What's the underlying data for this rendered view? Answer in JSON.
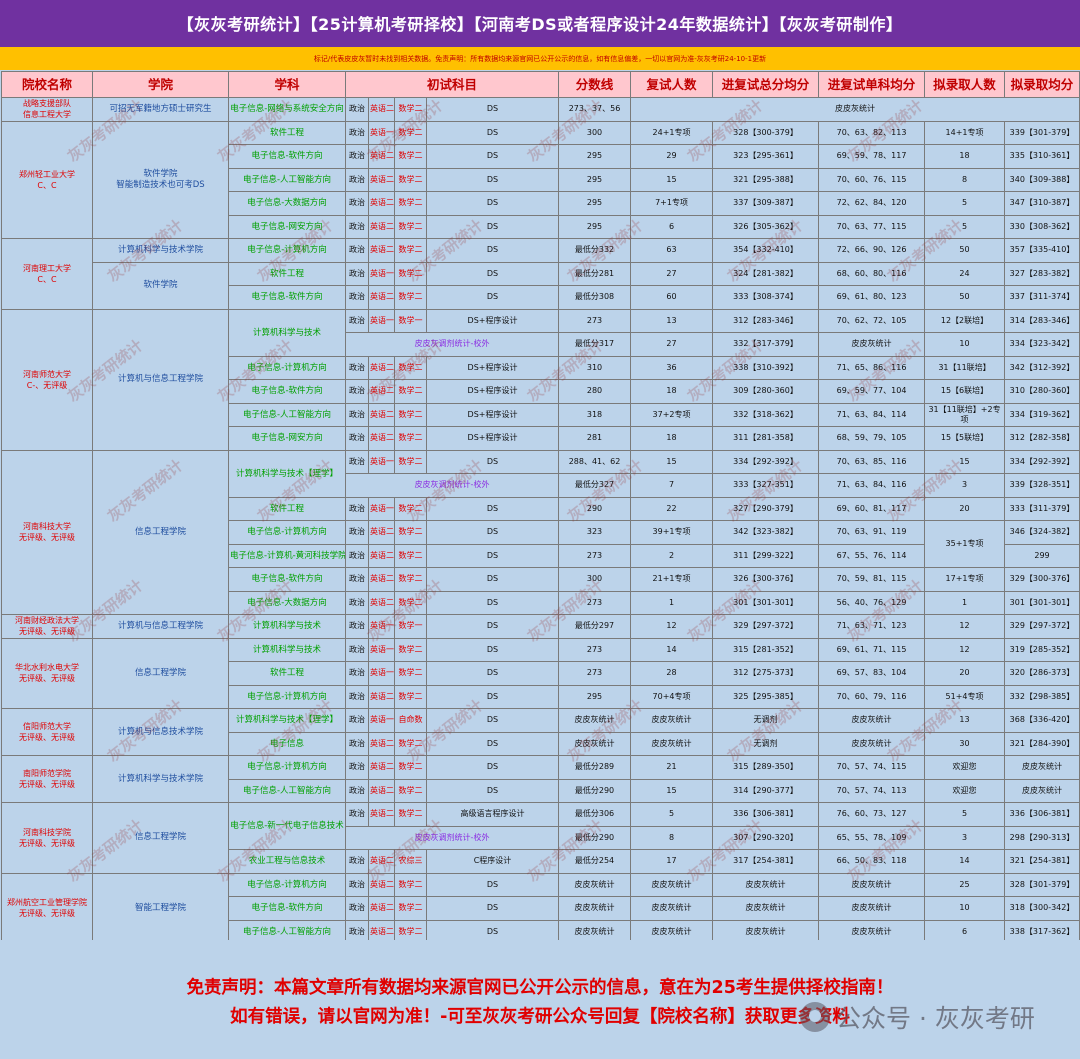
{
  "title": "【灰灰考研统计】【25计算机考研择校】【河南考DS或者程序设计24年数据统计】【灰灰考研制作】",
  "notice": "标记/代表皮皮灰暂时未找到相关数据。免责声明：所有数据均来源官网已公开公示的信息，如有信息偏差，一切以官网为准-灰灰考研24-10-1更新",
  "headers": [
    "院校名称",
    "学院",
    "学科",
    "初试科目",
    "分数线",
    "复试人数",
    "进复试总分均分",
    "进复试单科均分",
    "拟录取人数",
    "拟录取均分"
  ],
  "watermark_text": "灰灰考研统计",
  "schools": [
    {
      "name": "战略支援部队\n信息工程大学"
    },
    {
      "name": "郑州轻工业大学\nC、C"
    },
    {
      "name": "河南理工大学\nC、C"
    },
    {
      "name": "河南师范大学\nC-、无评级"
    },
    {
      "name": "河南科技大学\n无评级、无评级"
    },
    {
      "name": "河南财经政法大学\n无评级、无评级"
    },
    {
      "name": "华北水利水电大学\n无评级、无评级"
    },
    {
      "name": "信阳师范大学\n无评级、无评级"
    },
    {
      "name": "南阳师范学院\n无评级、无评级"
    },
    {
      "name": "河南科技学院\n无评级、无评级"
    },
    {
      "name": "郑州航空工业管理学院\n无评级、无评级"
    }
  ],
  "colleges": [
    "可招无军籍地方硕士研究生",
    "软件学院\n智能制造技术也可考DS",
    "计算机科学与技术学院",
    "软件学院",
    "计算机与信息工程学院",
    "信息工程学院",
    "计算机与信息工程学院",
    "信息工程学院",
    "计算机与信息技术学院",
    "计算机科学与技术学院",
    "信息工程学院",
    "智能工程学院"
  ],
  "rows": [
    {
      "major": "电子信息-网络与系统安全方向",
      "pol": "政治",
      "eng": "英语二",
      "math": "数学二",
      "pro": "DS",
      "line": "273、37、56",
      "retest": "皮皮灰统计"
    },
    {
      "major": "软件工程",
      "pol": "政治",
      "eng": "英语一",
      "math": "数学二",
      "pro": "DS",
      "line": "300",
      "retest": "24+1专项",
      "avg": "328【300-379】",
      "sub": "70、63、82、113",
      "admit": "14+1专项",
      "admit_avg": "339【301-379】"
    },
    {
      "major": "电子信息-软件方向",
      "pol": "政治",
      "eng": "英语二",
      "math": "数学二",
      "pro": "DS",
      "line": "295",
      "retest": "29",
      "avg": "323【295-361】",
      "sub": "69、59、78、117",
      "admit": "18",
      "admit_avg": "335【310-361】"
    },
    {
      "major": "电子信息-人工智能方向",
      "pol": "政治",
      "eng": "英语二",
      "math": "数学二",
      "pro": "DS",
      "line": "295",
      "retest": "15",
      "avg": "321【295-388】",
      "sub": "70、60、76、115",
      "admit": "8",
      "admit_avg": "340【309-388】"
    },
    {
      "major": "电子信息-大数据方向",
      "pol": "政治",
      "eng": "英语二",
      "math": "数学二",
      "pro": "DS",
      "line": "295",
      "retest": "7+1专项",
      "avg": "337【309-387】",
      "sub": "72、62、84、120",
      "admit": "5",
      "admit_avg": "347【310-387】"
    },
    {
      "major": "电子信息-网安方向",
      "pol": "政治",
      "eng": "英语二",
      "math": "数学二",
      "pro": "DS",
      "line": "295",
      "retest": "6",
      "avg": "326【305-362】",
      "sub": "70、63、77、115",
      "admit": "5",
      "admit_avg": "330【308-362】"
    },
    {
      "major": "电子信息-计算机方向",
      "pol": "政治",
      "eng": "英语二",
      "math": "数学二",
      "pro": "DS",
      "line": "最低分332",
      "retest": "63",
      "avg": "354【332-410】",
      "sub": "72、66、90、126",
      "admit": "50",
      "admit_avg": "357【335-410】"
    },
    {
      "major": "软件工程",
      "pol": "政治",
      "eng": "英语一",
      "math": "数学二",
      "pro": "DS",
      "line": "最低分281",
      "retest": "27",
      "avg": "324【281-382】",
      "sub": "68、60、80、116",
      "admit": "24",
      "admit_avg": "327【283-382】"
    },
    {
      "major": "电子信息-软件方向",
      "pol": "政治",
      "eng": "英语二",
      "math": "数学二",
      "pro": "DS",
      "line": "最低分308",
      "retest": "60",
      "avg": "333【308-374】",
      "sub": "69、61、80、123",
      "admit": "50",
      "admit_avg": "337【311-374】"
    },
    {
      "major": "计算机科学与技术",
      "pol": "政治",
      "eng": "英语一",
      "math": "数学一",
      "pro": "DS+程序设计",
      "line": "273",
      "retest": "13",
      "avg": "312【283-346】",
      "sub": "70、62、72、105",
      "admit": "12【2联培】",
      "admit_avg": "314【283-346】"
    },
    {
      "merged": "皮皮灰调剂统计-校外",
      "line": "最低分317",
      "retest": "27",
      "avg": "332【317-379】",
      "sub": "皮皮灰统计",
      "admit": "10",
      "admit_avg": "334【323-342】"
    },
    {
      "major": "电子信息-计算机方向",
      "pol": "政治",
      "eng": "英语二",
      "math": "数学二",
      "pro": "DS+程序设计",
      "line": "310",
      "retest": "36",
      "avg": "338【310-392】",
      "sub": "71、65、86、116",
      "admit": "31【11联培】",
      "admit_avg": "342【312-392】"
    },
    {
      "major": "电子信息-软件方向",
      "pol": "政治",
      "eng": "英语二",
      "math": "数学二",
      "pro": "DS+程序设计",
      "line": "280",
      "retest": "18",
      "avg": "309【280-360】",
      "sub": "69、59、77、104",
      "admit": "15【6联培】",
      "admit_avg": "310【280-360】"
    },
    {
      "major": "电子信息-人工智能方向",
      "pol": "政治",
      "eng": "英语二",
      "math": "数学二",
      "pro": "DS+程序设计",
      "line": "318",
      "retest": "37+2专项",
      "avg": "332【318-362】",
      "sub": "71、63、84、114",
      "admit": "31【11联培】+2专项",
      "admit_avg": "334【319-362】"
    },
    {
      "major": "电子信息-网安方向",
      "pol": "政治",
      "eng": "英语二",
      "math": "数学二",
      "pro": "DS+程序设计",
      "line": "281",
      "retest": "18",
      "avg": "311【281-358】",
      "sub": "68、59、79、105",
      "admit": "15【5联培】",
      "admit_avg": "312【282-358】"
    },
    {
      "major": "计算机科学与技术【理学】",
      "pol": "政治",
      "eng": "英语一",
      "math": "数学二",
      "pro": "DS",
      "line": "288、41、62",
      "retest": "15",
      "avg": "334【292-392】",
      "sub": "70、63、85、116",
      "admit": "15",
      "admit_avg": "334【292-392】"
    },
    {
      "merged": "皮皮灰调剂统计-校外",
      "line": "最低分327",
      "retest": "7",
      "avg": "333【327-351】",
      "sub": "71、63、84、116",
      "admit": "3",
      "admit_avg": "339【328-351】"
    },
    {
      "major": "软件工程",
      "pol": "政治",
      "eng": "英语一",
      "math": "数学二",
      "pro": "DS",
      "line": "290",
      "retest": "22",
      "avg": "327【290-379】",
      "sub": "69、60、81、117",
      "admit": "20",
      "admit_avg": "333【311-379】"
    },
    {
      "major": "电子信息-计算机方向",
      "pol": "政治",
      "eng": "英语二",
      "math": "数学二",
      "pro": "DS",
      "line": "323",
      "retest": "39+1专项",
      "avg": "342【323-382】",
      "sub": "70、63、91、119",
      "admit": "35+1专项",
      "admit_avg": "346【324-382】"
    },
    {
      "major": "电子信息-计算机-黄河科技学院",
      "pol": "政治",
      "eng": "英语二",
      "math": "数学二",
      "pro": "DS",
      "line": "273",
      "retest": "2",
      "avg": "311【299-322】",
      "sub": "67、55、76、114",
      "admit_avg": "299"
    },
    {
      "major": "电子信息-软件方向",
      "pol": "政治",
      "eng": "英语二",
      "math": "数学二",
      "pro": "DS",
      "line": "300",
      "retest": "21+1专项",
      "avg": "326【300-376】",
      "sub": "70、59、81、115",
      "admit": "17+1专项",
      "admit_avg": "329【300-376】"
    },
    {
      "major": "电子信息-大数据方向",
      "pol": "政治",
      "eng": "英语二",
      "math": "数学二",
      "pro": "DS",
      "line": "273",
      "retest": "1",
      "avg": "301【301-301】",
      "sub": "56、40、76、129",
      "admit": "1",
      "admit_avg": "301【301-301】"
    },
    {
      "major": "计算机科学与技术",
      "pol": "政治",
      "eng": "英语一",
      "math": "数学一",
      "pro": "DS",
      "line": "最低分297",
      "retest": "12",
      "avg": "329【297-372】",
      "sub": "71、63、71、123",
      "admit": "12",
      "admit_avg": "329【297-372】"
    },
    {
      "major": "计算机科学与技术",
      "pol": "政治",
      "eng": "英语一",
      "math": "数学二",
      "pro": "DS",
      "line": "273",
      "retest": "14",
      "avg": "315【281-352】",
      "sub": "69、61、71、115",
      "admit": "12",
      "admit_avg": "319【285-352】"
    },
    {
      "major": "软件工程",
      "pol": "政治",
      "eng": "英语一",
      "math": "数学二",
      "pro": "DS",
      "line": "273",
      "retest": "28",
      "avg": "312【275-373】",
      "sub": "69、57、83、104",
      "admit": "20",
      "admit_avg": "320【286-373】"
    },
    {
      "major": "电子信息-计算机方向",
      "pol": "政治",
      "eng": "英语二",
      "math": "数学二",
      "pro": "DS",
      "line": "295",
      "retest": "70+4专项",
      "avg": "325【295-385】",
      "sub": "70、60、79、116",
      "admit": "51+4专项",
      "admit_avg": "332【298-385】"
    },
    {
      "major": "计算机科学与技术【理学】",
      "pol": "政治",
      "eng": "英语一",
      "math": "自命数",
      "pro": "DS",
      "line": "皮皮灰统计",
      "retest": "皮皮灰统计",
      "avg": "无调剂",
      "sub": "皮皮灰统计",
      "admit": "13",
      "admit_avg": "368【336-420】"
    },
    {
      "major": "电子信息",
      "pol": "政治",
      "eng": "英语二",
      "math": "数学二",
      "pro": "DS",
      "line": "皮皮灰统计",
      "retest": "皮皮灰统计",
      "avg": "无调剂",
      "sub": "皮皮灰统计",
      "admit": "30",
      "admit_avg": "321【284-390】"
    },
    {
      "major": "电子信息-计算机方向",
      "pol": "政治",
      "eng": "英语二",
      "math": "数学二",
      "pro": "DS",
      "line": "最低分289",
      "retest": "21",
      "avg": "315【289-350】",
      "sub": "70、57、74、115",
      "admit": "欢迎您",
      "admit_avg": "皮皮灰统计"
    },
    {
      "major": "电子信息-人工智能方向",
      "pol": "政治",
      "eng": "英语二",
      "math": "数学二",
      "pro": "DS",
      "line": "最低分290",
      "retest": "15",
      "avg": "314【290-377】",
      "sub": "70、57、74、113",
      "admit": "欢迎您",
      "admit_avg": "皮皮灰统计"
    },
    {
      "major": "电子信息-新一代电子信息技术",
      "pol": "政治",
      "eng": "英语二",
      "math": "数学二",
      "pro": "高级语言程序设计",
      "line": "最低分306",
      "retest": "5",
      "avg": "336【306-381】",
      "sub": "76、60、73、127",
      "admit": "5",
      "admit_avg": "336【306-381】"
    },
    {
      "merged": "皮皮灰调剂统计-校外",
      "line": "最低分290",
      "retest": "8",
      "avg": "307【290-320】",
      "sub": "65、55、78、109",
      "admit": "3",
      "admit_avg": "298【290-313】"
    },
    {
      "major": "农业工程与信息技术",
      "pol": "政治",
      "eng": "英语二",
      "math": "农综三",
      "pro": "C程序设计",
      "line": "最低分254",
      "retest": "17",
      "avg": "317【254-381】",
      "sub": "66、50、83、118",
      "admit": "14",
      "admit_avg": "321【254-381】"
    },
    {
      "major": "电子信息-计算机方向",
      "pol": "政治",
      "eng": "英语二",
      "math": "数学二",
      "pro": "DS",
      "line": "皮皮灰统计",
      "retest": "皮皮灰统计",
      "avg": "皮皮灰统计",
      "sub": "皮皮灰统计",
      "admit": "25",
      "admit_avg": "328【301-379】"
    },
    {
      "major": "电子信息-软件方向",
      "pol": "政治",
      "eng": "英语二",
      "math": "数学二",
      "pro": "DS",
      "line": "皮皮灰统计",
      "retest": "皮皮灰统计",
      "avg": "皮皮灰统计",
      "sub": "皮皮灰统计",
      "admit": "10",
      "admit_avg": "318【300-342】"
    },
    {
      "major": "电子信息-人工智能方向",
      "pol": "政治",
      "eng": "英语二",
      "math": "数学二",
      "pro": "DS",
      "line": "皮皮灰统计",
      "retest": "皮皮灰统计",
      "avg": "皮皮灰统计",
      "sub": "皮皮灰统计",
      "admit": "6",
      "admit_avg": "338【317-362】"
    }
  ],
  "footer": {
    "line1": "免责声明：本篇文章所有数据均来源官网已公开公示的信息，意在为25考生提供择校指南！",
    "line2": "如有错误，请以官网为准！-可至灰灰考研公众号回复【院校名称】获取更多资料",
    "brand": "公众号 · 灰灰考研"
  },
  "colors": {
    "title_bg": "#7031a0",
    "notice_bg": "#ffc000",
    "header_bg": "#ffc7ce",
    "table_bg": "#bcd3ea",
    "red": "#e00000",
    "blue": "#1f4e9f",
    "green": "#00a000"
  }
}
